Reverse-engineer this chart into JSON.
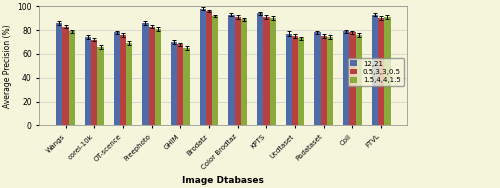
{
  "categories": [
    "Wangs",
    "corel-10k",
    "OT-scence",
    "Freephoto",
    "GHIM",
    "Brodatz",
    "Color Brodtaz",
    "KPTS",
    "Ucdtaset",
    "Rsdataset",
    "Coil",
    "FTVL"
  ],
  "series": {
    "12,21": [
      86,
      74,
      78,
      86,
      70,
      98,
      93,
      94,
      77,
      78,
      79,
      93
    ],
    "0.5,3,3,0.5": [
      83,
      72,
      76,
      83,
      68,
      96,
      91,
      91,
      75,
      75,
      78,
      90
    ],
    "1.5,4,4,1.5": [
      79,
      66,
      69,
      81,
      65,
      92,
      89,
      90,
      73,
      74,
      76,
      91
    ]
  },
  "errors": {
    "12,21": [
      1.5,
      1.5,
      1.5,
      2.0,
      1.5,
      1.0,
      1.5,
      1.5,
      2.0,
      1.5,
      1.5,
      1.5
    ],
    "0.5,3,3,0.5": [
      1.5,
      1.5,
      1.5,
      1.5,
      1.5,
      1.0,
      1.5,
      1.5,
      2.0,
      1.5,
      1.5,
      1.5
    ],
    "1.5,4,4,1.5": [
      1.5,
      1.5,
      1.5,
      1.5,
      1.5,
      1.0,
      1.5,
      1.5,
      1.5,
      1.5,
      1.5,
      1.5
    ]
  },
  "colors": {
    "12,21": "#4F6CA8",
    "0.5,3,3,0.5": "#B94040",
    "1.5,4,4,1.5": "#8AAB3C"
  },
  "bg_color": "#F5F5DC",
  "plot_bg_color": "#F5F5DC",
  "grid_color": "#CCCCCC",
  "ylabel": "Average Precision (%)",
  "xlabel": "Image Dtabases",
  "ylim": [
    0,
    100
  ],
  "yticks": [
    0,
    20,
    40,
    60,
    80,
    100
  ],
  "legend_labels": [
    "12,21",
    "0.5,3,3,0.5",
    "1.5,4,4,1.5"
  ],
  "bar_width": 0.22,
  "figsize": [
    5.0,
    1.88
  ],
  "dpi": 100
}
